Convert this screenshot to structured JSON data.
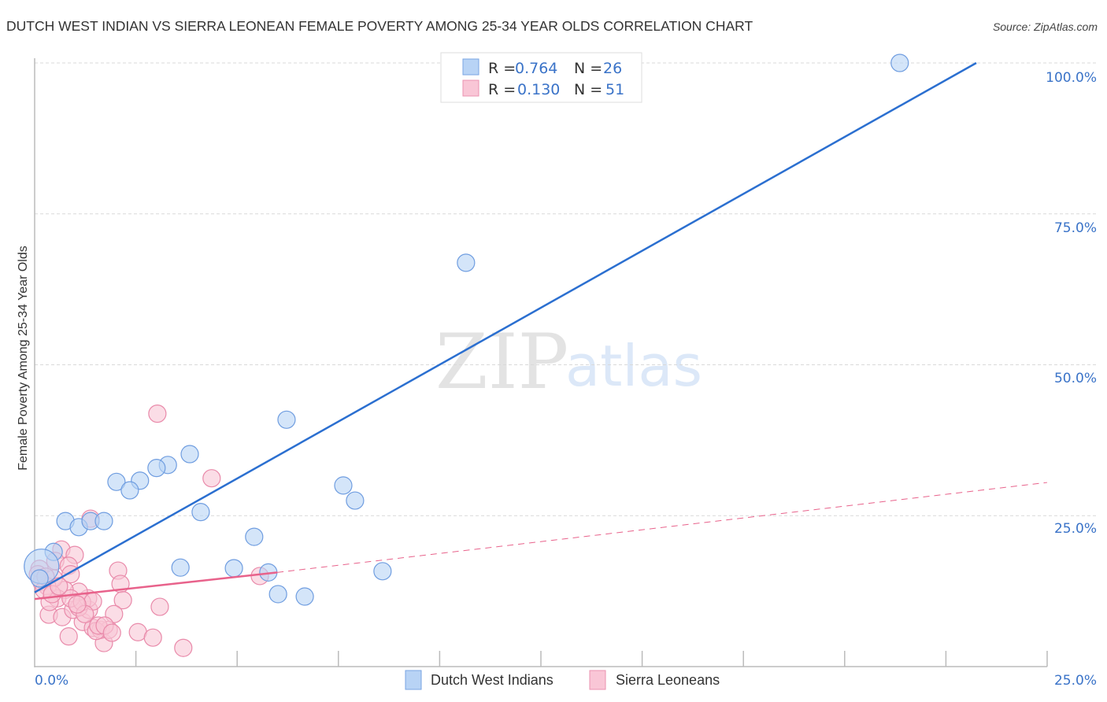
{
  "header": {
    "title": "DUTCH WEST INDIAN VS SIERRA LEONEAN FEMALE POVERTY AMONG 25-34 YEAR OLDS CORRELATION CHART",
    "source": "Source: ZipAtlas.com"
  },
  "watermark": {
    "zip": "ZIP",
    "atlas": "atlas"
  },
  "legend": {
    "rows": [
      {
        "r_label": "R =",
        "r_value": "0.764",
        "n_label": "N =",
        "n_value": "26",
        "color": "#b8d3f5",
        "stroke": "#7aa6e3"
      },
      {
        "r_label": "R =",
        "r_value": "0.130",
        "n_label": "N =",
        "n_value": "51",
        "color": "#f9c6d6",
        "stroke": "#eb93b0"
      }
    ]
  },
  "bottom_legend": {
    "items": [
      {
        "label": "Dutch West Indians",
        "color": "#b8d3f5",
        "stroke": "#7aa6e3"
      },
      {
        "label": "Sierra Leoneans",
        "color": "#f9c6d6",
        "stroke": "#eb93b0"
      }
    ]
  },
  "axes": {
    "y_title": "Female Poverty Among 25-34 Year Olds",
    "y_ticks": [
      "100.0%",
      "75.0%",
      "50.0%",
      "25.0%"
    ],
    "x_min_label": "0.0%",
    "x_max_label": "25.0%"
  },
  "colors": {
    "blue_fill": "#b8d3f5",
    "blue_stroke": "#6f9de0",
    "blue_line": "#2b6fd0",
    "pink_fill": "#f9c6d6",
    "pink_stroke": "#e98aaa",
    "pink_line": "#e8628b",
    "grid": "#d9d9d9",
    "axis": "#bbbbbb",
    "tick_label": "#3a73c8"
  },
  "chart_data": {
    "type": "scatter",
    "title": "DUTCH WEST INDIAN VS SIERRA LEONEAN FEMALE POVERTY AMONG 25-34 YEAR OLDS CORRELATION CHART",
    "xlabel": "",
    "ylabel": "Female Poverty Among 25-34 Year Olds",
    "xlim": [
      0,
      25
    ],
    "ylim": [
      0,
      100
    ],
    "x_tick_labels": [
      "0.0%",
      "25.0%"
    ],
    "y_tick_labels": [
      "25.0%",
      "50.0%",
      "75.0%",
      "100.0%"
    ],
    "y_ticks": [
      25,
      50,
      75,
      100
    ],
    "x_minor_ticks": [
      2.5,
      5,
      7.5,
      10,
      12.5,
      15,
      17.5,
      20,
      22.5,
      25
    ],
    "grid": "horizontal dashed",
    "legend_position": "top-center and bottom",
    "series": [
      {
        "name": "Dutch West Indians",
        "r": 0.764,
        "n": 26,
        "trend": {
          "x0": 0,
          "y0": 12.3,
          "x1": 23.25,
          "y1": 100,
          "style": "solid"
        },
        "points": [
          [
            21.36,
            100.0
          ],
          [
            10.65,
            66.9
          ],
          [
            6.22,
            40.9
          ],
          [
            3.83,
            35.2
          ],
          [
            3.29,
            33.4
          ],
          [
            3.01,
            32.9
          ],
          [
            2.6,
            30.8
          ],
          [
            2.02,
            30.6
          ],
          [
            2.35,
            29.2
          ],
          [
            7.62,
            30.0
          ],
          [
            7.91,
            27.5
          ],
          [
            4.1,
            25.6
          ],
          [
            0.76,
            24.1
          ],
          [
            1.09,
            23.1
          ],
          [
            1.38,
            24.1
          ],
          [
            1.71,
            24.1
          ],
          [
            5.42,
            21.5
          ],
          [
            0.47,
            19.0
          ],
          [
            3.6,
            16.4
          ],
          [
            4.92,
            16.3
          ],
          [
            5.77,
            15.6
          ],
          [
            8.59,
            15.8
          ],
          [
            6.01,
            12.0
          ],
          [
            6.67,
            11.6
          ],
          [
            0.17,
            16.6,
            22
          ],
          [
            0.12,
            14.6
          ]
        ]
      },
      {
        "name": "Sierra Leoneans",
        "r": 0.13,
        "n": 51,
        "trend": {
          "x0": 0,
          "y0": 11.2,
          "x1": 5.99,
          "y1": 15.6,
          "dashed_to_x": 25,
          "dashed_to_y": 30.5,
          "style": "solid then dashed"
        },
        "points": [
          [
            3.03,
            41.9
          ],
          [
            4.37,
            31.2
          ],
          [
            1.38,
            24.5
          ],
          [
            0.66,
            19.4
          ],
          [
            0.99,
            18.5
          ],
          [
            0.51,
            17.5
          ],
          [
            0.84,
            16.7
          ],
          [
            0.89,
            15.3
          ],
          [
            2.06,
            15.9
          ],
          [
            2.12,
            13.7
          ],
          [
            2.18,
            11.0
          ],
          [
            3.09,
            9.9
          ],
          [
            3.67,
            3.1
          ],
          [
            2.55,
            5.7
          ],
          [
            2.92,
            4.8
          ],
          [
            1.71,
            3.9
          ],
          [
            0.84,
            5.0
          ],
          [
            0.35,
            8.6
          ],
          [
            0.68,
            8.2
          ],
          [
            1.19,
            7.4
          ],
          [
            1.34,
            9.4
          ],
          [
            0.95,
            9.4
          ],
          [
            1.09,
            9.8
          ],
          [
            1.44,
            6.4
          ],
          [
            1.63,
            6.1
          ],
          [
            1.83,
            6.1
          ],
          [
            1.32,
            11.3
          ],
          [
            1.09,
            12.4
          ],
          [
            0.74,
            12.7
          ],
          [
            0.56,
            11.3
          ],
          [
            0.37,
            10.7
          ],
          [
            0.47,
            14.6
          ],
          [
            0.17,
            14.0
          ],
          [
            0.12,
            16.2
          ],
          [
            5.56,
            15.0
          ],
          [
            1.52,
            5.9
          ],
          [
            1.57,
            6.8
          ],
          [
            0.31,
            13.3
          ],
          [
            0.23,
            12.7
          ],
          [
            0.43,
            12.0
          ],
          [
            0.89,
            11.3
          ],
          [
            1.17,
            10.7
          ],
          [
            1.44,
            10.8
          ],
          [
            1.24,
            8.7
          ],
          [
            1.96,
            8.7
          ],
          [
            1.73,
            6.8
          ],
          [
            0.08,
            15.3
          ],
          [
            0.27,
            14.9
          ],
          [
            0.6,
            13.3
          ],
          [
            1.91,
            5.6
          ],
          [
            1.05,
            10.3
          ]
        ]
      }
    ]
  }
}
